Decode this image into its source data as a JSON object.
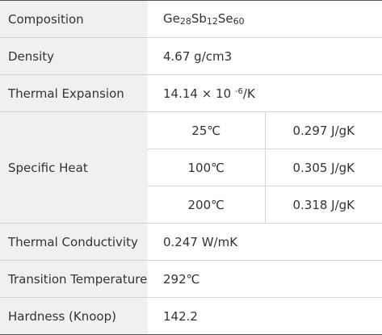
{
  "table": {
    "rows": [
      {
        "label": "Composition",
        "value": [
          {
            "symbol": "Ge",
            "sub": "28"
          },
          {
            "symbol": "Sb",
            "sub": "12"
          },
          {
            "symbol": "Se",
            "sub": "60"
          }
        ]
      },
      {
        "label": "Density",
        "value": "4.67 g/cm3"
      },
      {
        "label": "Thermal Expansion",
        "value": {
          "base": "14.14 × 10 ",
          "exponent": "-6",
          "unit": "/K"
        }
      },
      {
        "label": "Specific Heat",
        "sub_rows": [
          [
            "25℃",
            "0.297 J/gK"
          ],
          [
            "100℃",
            "0.305 J/gK"
          ],
          [
            "200℃",
            "0.318 J/gK"
          ]
        ]
      },
      {
        "label": "Thermal Conductivity",
        "value": "0.247 W/mK"
      },
      {
        "label": "Transition Temperature",
        "value": "292℃"
      },
      {
        "label": "Hardness (Knoop)",
        "value": "142.2"
      }
    ]
  }
}
